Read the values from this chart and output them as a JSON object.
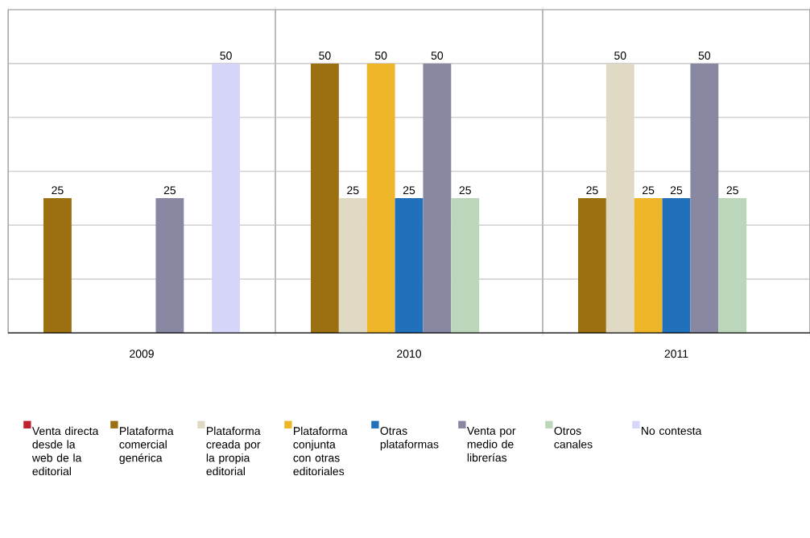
{
  "chart_data": {
    "type": "bar",
    "categories": [
      "2009",
      "2010",
      "2011"
    ],
    "series": [
      {
        "name": "Venta directa desde la web de la editorial",
        "color": "#c0202c",
        "values": [
          null,
          null,
          null
        ]
      },
      {
        "name": "Plataforma comercial genérica",
        "color": "#9c7010",
        "values": [
          25,
          50,
          25
        ]
      },
      {
        "name": "Plataforma creada por la propia editorial",
        "color": "#e0dac4",
        "values": [
          null,
          25,
          50
        ]
      },
      {
        "name": "Plataforma conjunta con otras editoriales",
        "color": "#eeb628",
        "values": [
          null,
          50,
          25
        ]
      },
      {
        "name": "Otras plataformas",
        "color": "#2070bc",
        "values": [
          null,
          25,
          25
        ]
      },
      {
        "name": "Venta por medio de librerías",
        "color": "#8888a2",
        "values": [
          25,
          50,
          50
        ]
      },
      {
        "name": "Otros canales",
        "color": "#bcd6bc",
        "values": [
          null,
          25,
          25
        ]
      },
      {
        "name": "No contesta",
        "color": "#d6d6fa",
        "values": [
          50,
          null,
          null
        ]
      }
    ],
    "ylim": [
      0,
      60
    ],
    "yticks": [
      {
        "value": 0,
        "label": null
      },
      {
        "value": 10,
        "label": null
      },
      {
        "value": 20,
        "label": null
      },
      {
        "value": 30,
        "label": null
      },
      {
        "value": 40,
        "label": null
      },
      {
        "value": 50,
        "label": null
      },
      {
        "value": 60,
        "label": null
      }
    ],
    "tick_labels": "x",
    "grid": true,
    "legend": "bottom",
    "data_labels": true
  }
}
